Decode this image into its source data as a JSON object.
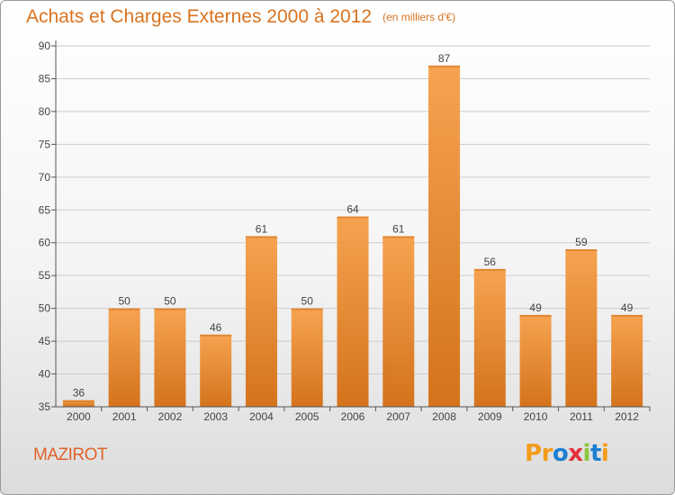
{
  "page": {
    "title": "Achats et Charges Externes 2000 à 2012",
    "unit": "(en milliers d'€)",
    "commune": "MAZIROT",
    "logo": [
      "P",
      "r",
      "o",
      "x",
      "i",
      "t",
      "i"
    ],
    "logo_colors": [
      "#f39c1a",
      "#f39c1a",
      "#1e7fd1",
      "#e2303c",
      "#8cc63f",
      "#1e7fd1",
      "#f39c1a"
    ]
  },
  "colors": {
    "bar_top": "#f6a350",
    "bar_bottom": "#d4731c",
    "grid": "#cccccc",
    "axis": "#555555",
    "title": "#d9731f"
  },
  "chart_data": {
    "type": "bar",
    "title": "Achats et Charges Externes 2000 à 2012",
    "subtitle": "(en milliers d'€)",
    "categories": [
      "2000",
      "2001",
      "2002",
      "2003",
      "2004",
      "2005",
      "2006",
      "2007",
      "2008",
      "2009",
      "2010",
      "2011",
      "2012"
    ],
    "values": [
      36,
      50,
      50,
      46,
      61,
      50,
      64,
      61,
      87,
      56,
      49,
      59,
      49
    ],
    "ylim": [
      35,
      90
    ],
    "yticks": [
      35,
      40,
      45,
      50,
      55,
      60,
      65,
      70,
      75,
      80,
      85,
      90
    ],
    "grid": true,
    "xlabel": "",
    "ylabel": ""
  }
}
